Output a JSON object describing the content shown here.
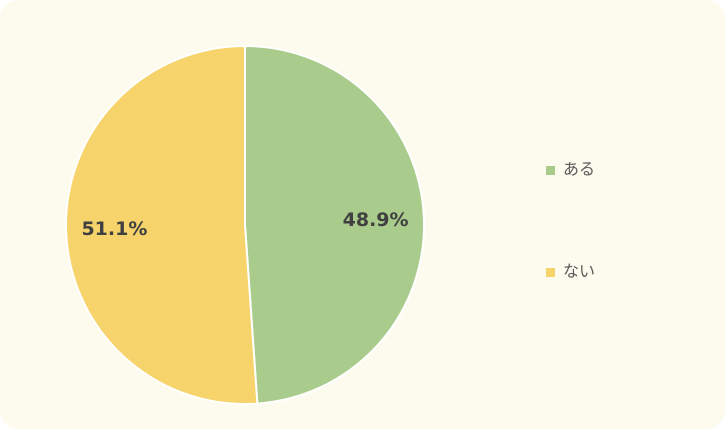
{
  "chart_data": {
    "type": "pie",
    "categories": [
      "ある",
      "ない"
    ],
    "values": [
      48.9,
      51.1
    ],
    "value_labels": [
      "48.9%",
      "51.1%"
    ],
    "colors": [
      "#a9cc8c",
      "#f7d36b"
    ]
  }
}
